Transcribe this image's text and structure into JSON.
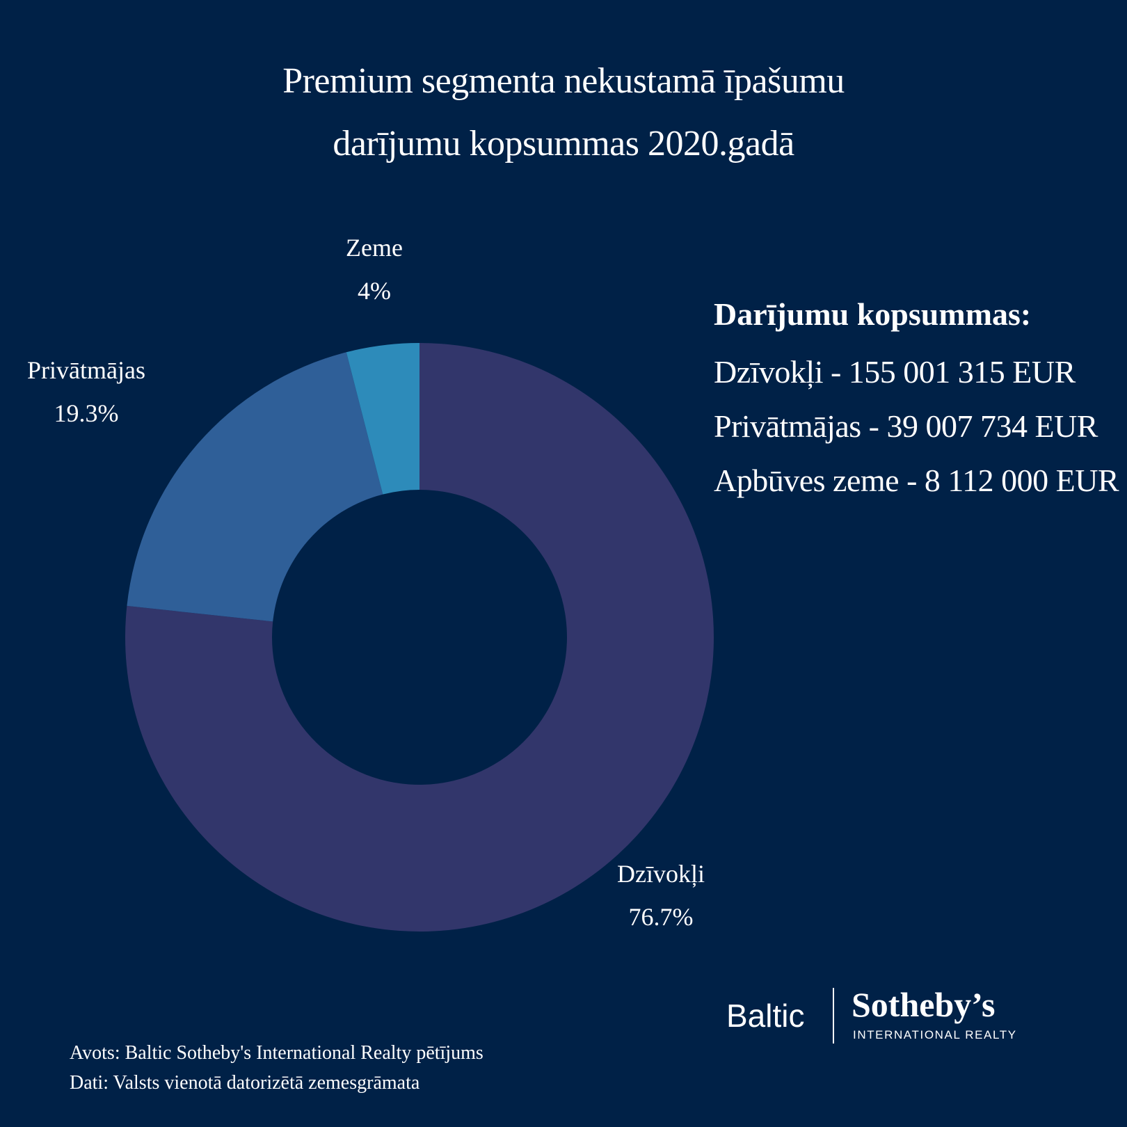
{
  "title": {
    "line1": "Premium segmenta nekustamā īpašumu",
    "line2": "darījumu kopsummas 2020.gadā"
  },
  "colors": {
    "background": "#002147",
    "slices": [
      "#32366B",
      "#2F5F98",
      "#2D8BBA"
    ],
    "text": "#FFFFFF"
  },
  "chart_data": {
    "type": "pie",
    "donut": true,
    "categories": [
      "Dzīvokļi",
      "Privātmājas",
      "Zeme"
    ],
    "values": [
      76.7,
      19.3,
      4
    ],
    "value_labels": [
      "76.7%",
      "19.3%",
      "4%"
    ],
    "title": "Premium segmenta nekustamā īpašumu darījumu kopsummas 2020.gadā",
    "legend": "none"
  },
  "summary": {
    "heading": "Darījumu kopsummas:",
    "lines": [
      "Dzīvokļi - 155 001 315 EUR",
      "Privātmājas - 39 007 734 EUR",
      "Apbūves zeme - 8 112 000 EUR"
    ]
  },
  "logo": {
    "word1": "Baltic",
    "word2": "Sotheby’s",
    "sub": "INTERNATIONAL REALTY"
  },
  "footer": {
    "source": "Avots: Baltic Sotheby's International Realty pētījums",
    "data": "Dati: Valsts vienotā datorizētā zemesgrāmata"
  }
}
